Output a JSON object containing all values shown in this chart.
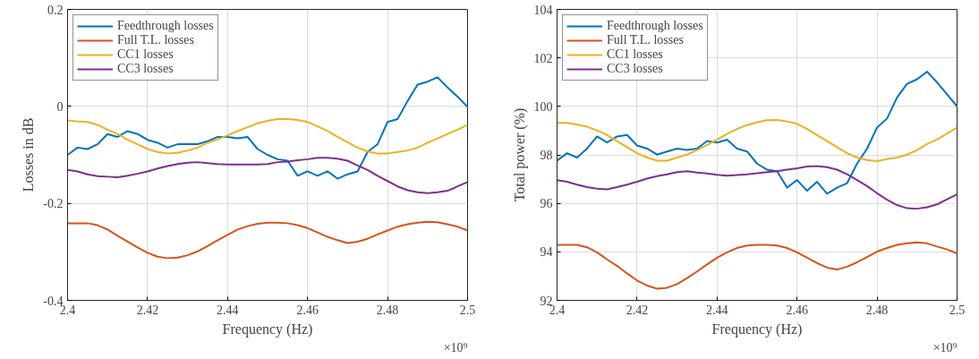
{
  "chart_data": [
    {
      "type": "line",
      "xlabel": "Frequency (Hz)",
      "ylabel": "Losses in dB",
      "annotations": [
        "×10⁹"
      ],
      "x": [
        2.4,
        2.4025,
        2.405,
        2.4075,
        2.41,
        2.4125,
        2.415,
        2.4175,
        2.42,
        2.4225,
        2.425,
        2.4275,
        2.43,
        2.4325,
        2.435,
        2.4375,
        2.44,
        2.4425,
        2.445,
        2.4475,
        2.45,
        2.4525,
        2.455,
        2.4575,
        2.46,
        2.4625,
        2.465,
        2.4675,
        2.47,
        2.4725,
        2.475,
        2.4775,
        2.48,
        2.4825,
        2.485,
        2.4875,
        2.49,
        2.4925,
        2.495,
        2.4975,
        2.5
      ],
      "xlim": [
        2.4,
        2.5
      ],
      "xticks": [
        2.4,
        2.42,
        2.44,
        2.46,
        2.48,
        2.5
      ],
      "ylim": [
        -0.4,
        0.2
      ],
      "yticks": [
        -0.4,
        -0.2,
        0,
        0.2
      ],
      "grid": true,
      "legend": "top left",
      "line_style": "solid",
      "series": [
        {
          "name": "Feedthrough losses",
          "color": "#0072bd",
          "values": [
            -0.1,
            -0.085,
            -0.088,
            -0.078,
            -0.057,
            -0.063,
            -0.051,
            -0.057,
            -0.069,
            -0.075,
            -0.085,
            -0.078,
            -0.078,
            -0.078,
            -0.072,
            -0.063,
            -0.063,
            -0.066,
            -0.063,
            -0.088,
            -0.1,
            -0.109,
            -0.112,
            -0.143,
            -0.134,
            -0.143,
            -0.134,
            -0.149,
            -0.14,
            -0.134,
            -0.094,
            -0.078,
            -0.032,
            -0.026,
            0.011,
            0.045,
            0.051,
            0.06,
            0.039,
            0.02,
            -0.001
          ]
        },
        {
          "name": "Full T.L. losses",
          "color": "#d95319",
          "values": [
            -0.241,
            -0.241,
            -0.241,
            -0.245,
            -0.254,
            -0.267,
            -0.279,
            -0.291,
            -0.302,
            -0.31,
            -0.313,
            -0.312,
            -0.307,
            -0.299,
            -0.288,
            -0.276,
            -0.265,
            -0.254,
            -0.247,
            -0.242,
            -0.24,
            -0.24,
            -0.241,
            -0.245,
            -0.251,
            -0.26,
            -0.269,
            -0.276,
            -0.282,
            -0.279,
            -0.273,
            -0.264,
            -0.256,
            -0.248,
            -0.243,
            -0.24,
            -0.238,
            -0.239,
            -0.243,
            -0.248,
            -0.256
          ]
        },
        {
          "name": "CC1 losses",
          "color": "#edb120",
          "values": [
            -0.029,
            -0.031,
            -0.032,
            -0.038,
            -0.048,
            -0.057,
            -0.069,
            -0.078,
            -0.088,
            -0.094,
            -0.097,
            -0.096,
            -0.091,
            -0.085,
            -0.075,
            -0.068,
            -0.06,
            -0.051,
            -0.043,
            -0.035,
            -0.03,
            -0.026,
            -0.026,
            -0.028,
            -0.032,
            -0.041,
            -0.051,
            -0.063,
            -0.074,
            -0.085,
            -0.093,
            -0.097,
            -0.097,
            -0.094,
            -0.091,
            -0.085,
            -0.075,
            -0.066,
            -0.057,
            -0.048,
            -0.038
          ]
        },
        {
          "name": "CC3 losses",
          "color": "#7e2f8e",
          "values": [
            -0.131,
            -0.134,
            -0.14,
            -0.144,
            -0.145,
            -0.146,
            -0.143,
            -0.139,
            -0.134,
            -0.128,
            -0.123,
            -0.119,
            -0.116,
            -0.115,
            -0.117,
            -0.119,
            -0.12,
            -0.12,
            -0.12,
            -0.12,
            -0.119,
            -0.115,
            -0.114,
            -0.111,
            -0.109,
            -0.106,
            -0.106,
            -0.108,
            -0.112,
            -0.122,
            -0.131,
            -0.143,
            -0.154,
            -0.165,
            -0.173,
            -0.177,
            -0.179,
            -0.177,
            -0.174,
            -0.165,
            -0.156
          ]
        }
      ]
    },
    {
      "type": "line",
      "xlabel": "Frequency (Hz)",
      "ylabel": "Total power (%)",
      "annotations": [
        "×10⁹"
      ],
      "x": [
        2.4,
        2.4025,
        2.405,
        2.4075,
        2.41,
        2.4125,
        2.415,
        2.4175,
        2.42,
        2.4225,
        2.425,
        2.4275,
        2.43,
        2.4325,
        2.435,
        2.4375,
        2.44,
        2.4425,
        2.445,
        2.4475,
        2.45,
        2.4525,
        2.455,
        2.4575,
        2.46,
        2.4625,
        2.465,
        2.4675,
        2.47,
        2.4725,
        2.475,
        2.4775,
        2.48,
        2.4825,
        2.485,
        2.4875,
        2.49,
        2.4925,
        2.495,
        2.4975,
        2.5
      ],
      "xlim": [
        2.4,
        2.5
      ],
      "xticks": [
        2.4,
        2.42,
        2.44,
        2.46,
        2.48,
        2.5
      ],
      "ylim": [
        92,
        104
      ],
      "yticks": [
        92,
        94,
        96,
        98,
        100,
        102,
        104
      ],
      "grid": true,
      "legend": "top left",
      "line_style": "solid",
      "series": [
        {
          "name": "Feedthrough losses",
          "color": "#0072bd",
          "values": [
            97.76,
            98.07,
            97.89,
            98.26,
            98.76,
            98.51,
            98.76,
            98.82,
            98.39,
            98.26,
            98.01,
            98.14,
            98.26,
            98.2,
            98.26,
            98.57,
            98.51,
            98.63,
            98.26,
            98.14,
            97.64,
            97.39,
            97.33,
            96.65,
            96.96,
            96.52,
            96.89,
            96.4,
            96.65,
            96.83,
            97.64,
            98.26,
            99.13,
            99.5,
            100.37,
            100.93,
            101.12,
            101.43,
            100.99,
            100.5,
            100.0
          ]
        },
        {
          "name": "Full T.L. losses",
          "color": "#d95319",
          "values": [
            94.29,
            94.29,
            94.29,
            94.19,
            93.98,
            93.69,
            93.42,
            93.11,
            92.82,
            92.61,
            92.48,
            92.52,
            92.67,
            92.92,
            93.19,
            93.48,
            93.76,
            93.98,
            94.16,
            94.26,
            94.29,
            94.29,
            94.26,
            94.16,
            93.98,
            93.76,
            93.54,
            93.35,
            93.27,
            93.39,
            93.57,
            93.79,
            94.01,
            94.16,
            94.29,
            94.35,
            94.39,
            94.35,
            94.22,
            94.1,
            93.94
          ]
        },
        {
          "name": "CC1 losses",
          "color": "#edb120",
          "values": [
            99.32,
            99.32,
            99.25,
            99.16,
            99.01,
            98.82,
            98.57,
            98.32,
            98.07,
            97.89,
            97.76,
            97.76,
            97.89,
            98.01,
            98.2,
            98.41,
            98.63,
            98.86,
            99.07,
            99.23,
            99.35,
            99.43,
            99.44,
            99.38,
            99.28,
            99.07,
            98.82,
            98.57,
            98.32,
            98.07,
            97.89,
            97.79,
            97.74,
            97.83,
            97.89,
            98.01,
            98.2,
            98.45,
            98.63,
            98.88,
            99.13
          ]
        },
        {
          "name": "CC3 losses",
          "color": "#7e2f8e",
          "values": [
            96.96,
            96.89,
            96.77,
            96.67,
            96.61,
            96.58,
            96.67,
            96.77,
            96.89,
            97.02,
            97.12,
            97.2,
            97.29,
            97.33,
            97.27,
            97.23,
            97.18,
            97.14,
            97.17,
            97.2,
            97.24,
            97.29,
            97.33,
            97.39,
            97.45,
            97.52,
            97.54,
            97.49,
            97.39,
            97.2,
            96.96,
            96.71,
            96.42,
            96.15,
            95.93,
            95.8,
            95.78,
            95.84,
            95.96,
            96.17,
            96.37
          ]
        }
      ]
    }
  ]
}
